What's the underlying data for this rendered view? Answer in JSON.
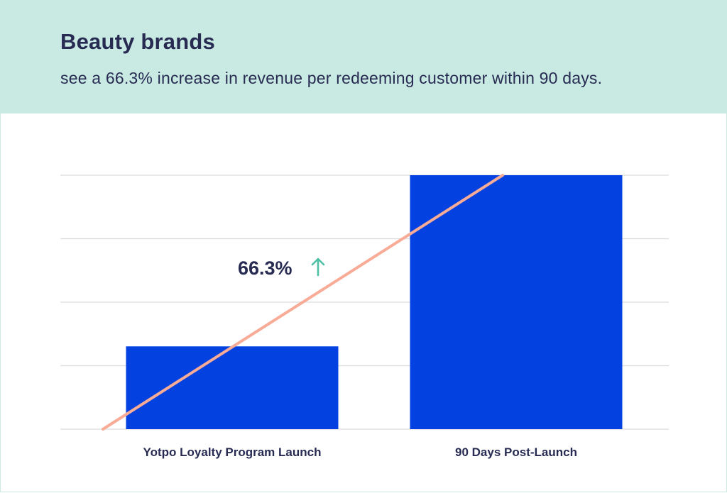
{
  "header": {
    "title": "Beauty brands",
    "subtitle": "see a 66.3% increase in revenue per redeeming customer within 90 days."
  },
  "chart_data": {
    "type": "bar",
    "categories": [
      "Yotpo Loyalty Program Launch",
      "90 Days Post-Launch"
    ],
    "values": [
      32.6,
      100
    ],
    "ylim": [
      0,
      100
    ],
    "grid": true,
    "gridline_count": 4,
    "annotation": {
      "text": "66.3%",
      "arrow": "↑"
    },
    "colors": {
      "bar": "#0342e0",
      "trend_line": "#f8ab96",
      "grid": "#dcdcdc",
      "arrow": "#4ec0a3",
      "text": "#272b52",
      "header_bg": "#c9e9e3"
    }
  }
}
